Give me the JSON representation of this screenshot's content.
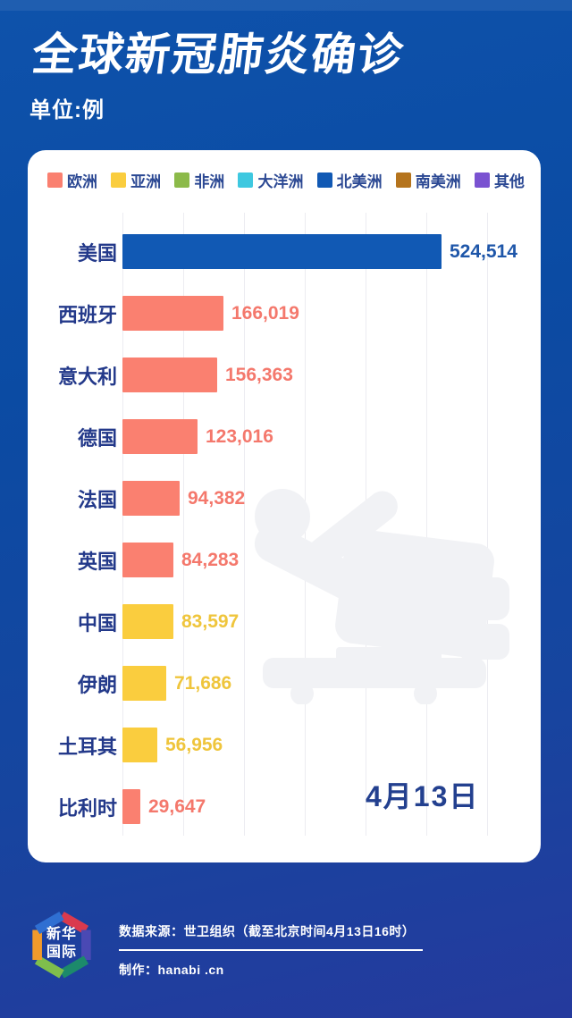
{
  "header": {
    "title": "全球新冠肺炎确诊",
    "unit": "单位:例"
  },
  "legend": [
    {
      "label": "欧洲",
      "continent": "europe",
      "color": "#FA8070"
    },
    {
      "label": "亚洲",
      "continent": "asia",
      "color": "#FACD3E"
    },
    {
      "label": "非洲",
      "continent": "africa",
      "color": "#8CBA4A"
    },
    {
      "label": "大洋洲",
      "continent": "oceania",
      "color": "#3EC8E0"
    },
    {
      "label": "北美洲",
      "continent": "north-america",
      "color": "#1159B4"
    },
    {
      "label": "南美洲",
      "continent": "south-america",
      "color": "#B5741D"
    },
    {
      "label": "其他",
      "continent": "other",
      "color": "#7A52D1"
    }
  ],
  "chart_data": {
    "type": "bar",
    "orientation": "horizontal",
    "title": "全球新冠肺炎确诊",
    "unit": "例",
    "date_label": "4月13日",
    "grid": true,
    "legend_position": "top",
    "xlim": [
      0,
      600000
    ],
    "gridline_interval": 100000,
    "categories": [
      "美国",
      "西班牙",
      "意大利",
      "德国",
      "法国",
      "英国",
      "中国",
      "伊朗",
      "土耳其",
      "比利时"
    ],
    "values": [
      524514,
      166019,
      156363,
      123016,
      94382,
      84283,
      83597,
      71686,
      56956,
      29647
    ],
    "value_labels": [
      "524,514",
      "166,019",
      "156,363",
      "123,016",
      "94,382",
      "84,283",
      "83,597",
      "71,686",
      "56,956",
      "29,647"
    ],
    "continents": [
      "north-america",
      "europe",
      "europe",
      "europe",
      "europe",
      "europe",
      "asia",
      "asia",
      "asia",
      "europe"
    ]
  },
  "continent_colors": {
    "europe": {
      "bar": "#FA8070",
      "text": "#F4786C"
    },
    "asia": {
      "bar": "#FACD3E",
      "text": "#EFC53C"
    },
    "africa": {
      "bar": "#8CBA4A",
      "text": "#8CBA4A"
    },
    "oceania": {
      "bar": "#3EC8E0",
      "text": "#3EC8E0"
    },
    "north-america": {
      "bar": "#1159B4",
      "text": "#1E56A9"
    },
    "south-america": {
      "bar": "#B5741D",
      "text": "#B5741D"
    },
    "other": {
      "bar": "#7A52D1",
      "text": "#7A52D1"
    }
  },
  "watermark": {
    "icon": "patient-in-hospital-bed-icon",
    "color": "#F1F2F5"
  },
  "footer": {
    "logo_line1": "新华",
    "logo_line2": "国际",
    "source": "数据来源：世卫组织（截至北京时间4月13日16时）",
    "credit": "制作：hanabi .cn"
  }
}
